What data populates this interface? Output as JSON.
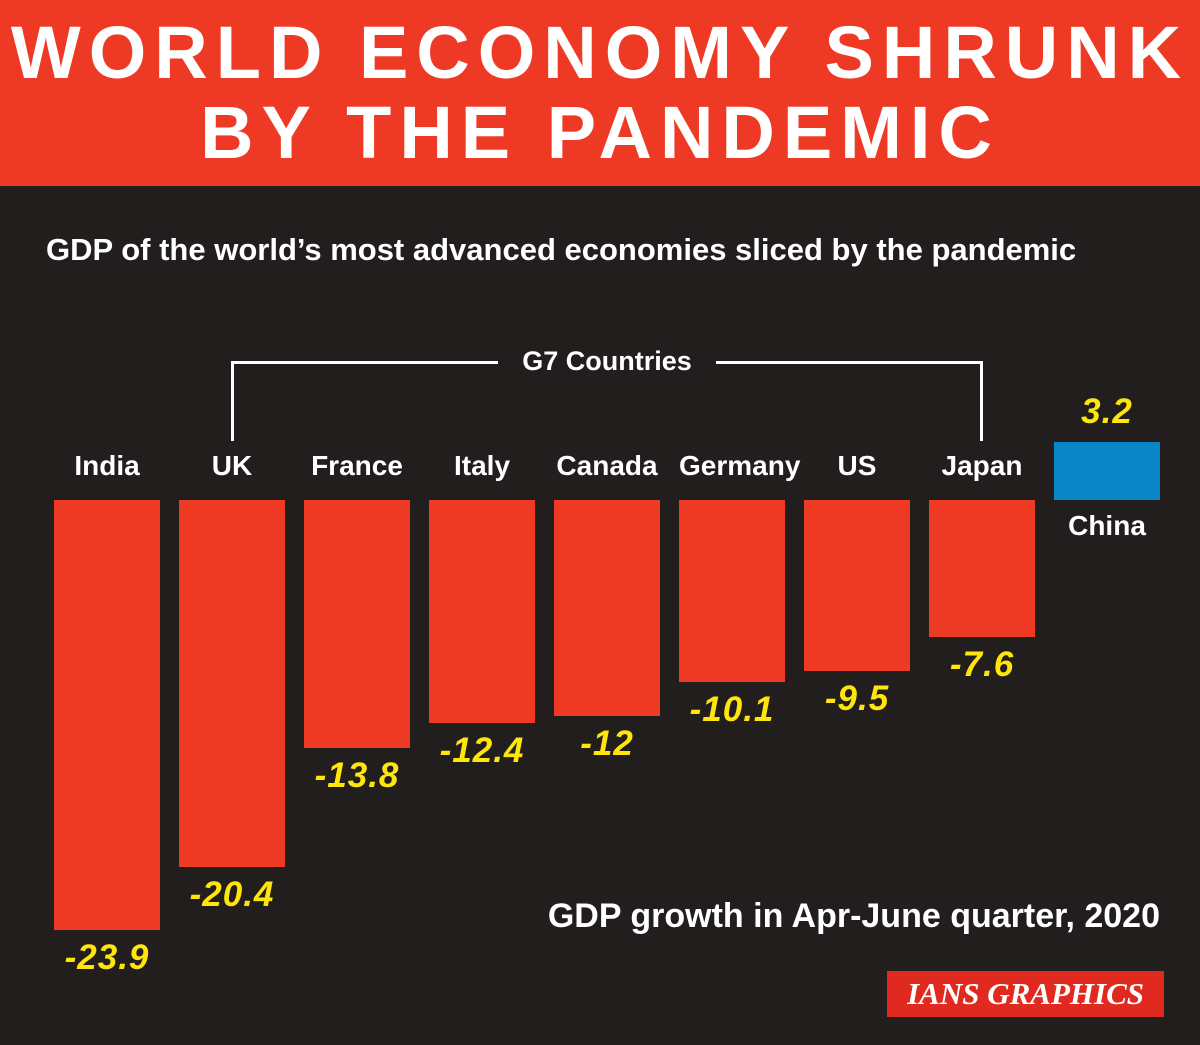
{
  "header": {
    "line1": "WORLD ECONOMY SHRUNK",
    "line2": "BY THE PANDEMIC"
  },
  "subtitle": "GDP of the world’s most advanced economies sliced by the pandemic",
  "bracket_label": "G7 Countries",
  "footer_note": "GDP growth in Apr-June quarter, 2020",
  "credit": "IANS GRAPHICS",
  "colors": {
    "background": "#221e1d",
    "banner_red": "#ee3a25",
    "credit_red": "#e02a20",
    "bar_negative": "#ee3a25",
    "bar_positive": "#0a85c7",
    "value_yellow": "#ffe60a",
    "text_white": "#ffffff"
  },
  "chart_data": {
    "type": "bar",
    "title": "GDP growth in Apr-June quarter, 2020",
    "categories": [
      "India",
      "UK",
      "France",
      "Italy",
      "Canada",
      "Germany",
      "US",
      "Japan",
      "China"
    ],
    "values": [
      -23.9,
      -20.4,
      -13.8,
      -12.4,
      -12,
      -10.1,
      -9.5,
      -7.6,
      3.2
    ],
    "unit": "percent",
    "ylim": [
      -25,
      5
    ],
    "annotation": "G7 Countries",
    "g7_span": [
      "UK",
      "Japan"
    ],
    "bar_colors": {
      "negative": "#ee3a25",
      "positive": "#0a85c7"
    },
    "value_label_color": "#ffe60a",
    "category_label_color": "#ffffff",
    "grid": false,
    "legend": "none"
  }
}
